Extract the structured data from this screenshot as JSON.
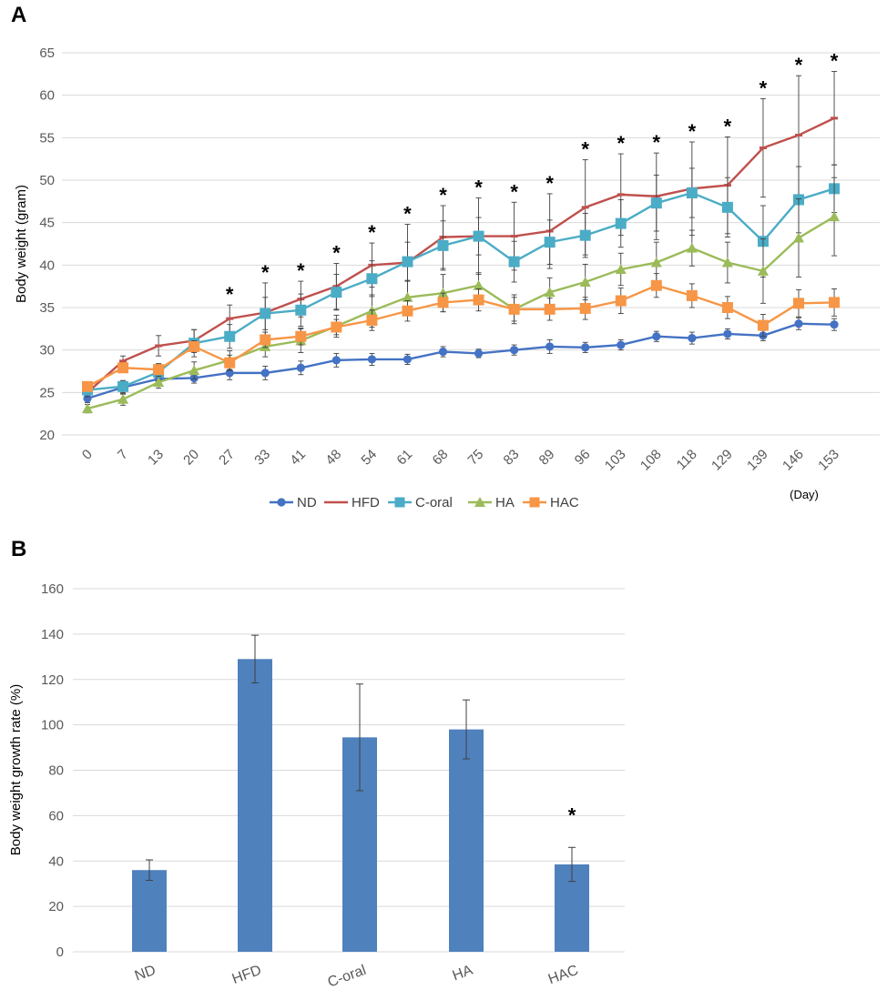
{
  "panels": {
    "a_label": "A",
    "b_label": "B"
  },
  "colors": {
    "ND": "#4472c4",
    "HFD": "#c0504d",
    "C-oral": "#4bacc6",
    "HA": "#9bbb59",
    "HAC": "#f79646",
    "bar": "#4f81bd",
    "grid": "#d9d9d9",
    "axis_text": "#595959",
    "error": "#404040"
  },
  "chart_data": [
    {
      "type": "line",
      "panel": "A",
      "title": "",
      "xlabel": "(Day)",
      "ylabel": "Body weight (gram)",
      "ylim": [
        20,
        65
      ],
      "yticks": [
        20,
        25,
        30,
        35,
        40,
        45,
        50,
        55,
        60,
        65
      ],
      "grid": true,
      "legend": "bottom",
      "categories": [
        "0",
        "7",
        "13",
        "20",
        "27",
        "33",
        "41",
        "48",
        "54",
        "61",
        "68",
        "75",
        "83",
        "89",
        "96",
        "103",
        "108",
        "118",
        "129",
        "139",
        "146",
        "153"
      ],
      "significance": [
        "",
        "",
        "",
        "",
        "*",
        "*",
        "*",
        "*",
        "*",
        "*",
        "*",
        "*",
        "*",
        "*",
        "*",
        "*",
        "*",
        "*",
        "*",
        "*",
        "*",
        "*"
      ],
      "series": [
        {
          "name": "ND",
          "marker": "circle",
          "values": [
            24.3,
            25.6,
            26.6,
            26.7,
            27.3,
            27.3,
            27.9,
            28.8,
            28.9,
            28.9,
            29.8,
            29.6,
            30.0,
            30.4,
            30.3,
            30.6,
            31.6,
            31.4,
            31.9,
            31.7,
            33.1,
            33.0
          ],
          "errors": [
            0.5,
            0.8,
            0.6,
            0.6,
            0.8,
            0.8,
            0.8,
            0.8,
            0.7,
            0.6,
            0.6,
            0.5,
            0.6,
            0.8,
            0.6,
            0.6,
            0.6,
            0.7,
            0.6,
            0.6,
            0.7,
            0.7
          ]
        },
        {
          "name": "HFD",
          "marker": "dash",
          "values": [
            25.0,
            28.7,
            30.5,
            31.1,
            33.7,
            34.4,
            36.0,
            37.5,
            40.0,
            40.3,
            43.3,
            43.4,
            43.4,
            44.0,
            46.8,
            48.3,
            48.1,
            49.0,
            49.4,
            53.8,
            55.3,
            57.3
          ],
          "errors": [
            0.5,
            0.6,
            1.2,
            1.3,
            1.6,
            3.5,
            2.1,
            2.7,
            2.6,
            4.5,
            3.7,
            4.5,
            4.0,
            4.4,
            5.6,
            4.8,
            5.1,
            5.5,
            5.7,
            5.8,
            7.0,
            5.5
          ]
        },
        {
          "name": "C-oral",
          "marker": "square",
          "values": [
            25.3,
            25.7,
            27.4,
            30.8,
            31.6,
            34.3,
            34.7,
            36.8,
            38.4,
            40.4,
            42.3,
            43.4,
            40.4,
            42.7,
            43.5,
            44.9,
            47.3,
            48.5,
            46.8,
            42.8,
            47.7,
            49.0
          ],
          "errors": [
            0.5,
            0.7,
            1.0,
            1.6,
            1.4,
            1.9,
            1.9,
            2.1,
            2.1,
            2.3,
            2.9,
            2.2,
            2.4,
            2.6,
            2.6,
            2.8,
            3.3,
            2.9,
            3.5,
            4.2,
            3.9,
            2.8
          ]
        },
        {
          "name": "HA",
          "marker": "triangle",
          "values": [
            23.1,
            24.2,
            26.2,
            27.6,
            28.8,
            30.4,
            31.1,
            32.8,
            34.6,
            36.2,
            36.7,
            37.6,
            34.8,
            36.8,
            38.0,
            39.5,
            40.3,
            42.0,
            40.3,
            39.3,
            43.2,
            45.7
          ],
          "errors": [
            0.5,
            0.7,
            0.7,
            1.0,
            1.1,
            1.2,
            1.4,
            1.3,
            1.9,
            2.0,
            2.2,
            1.5,
            1.7,
            1.7,
            2.1,
            1.9,
            2.4,
            2.1,
            2.4,
            3.8,
            4.6,
            4.6
          ]
        },
        {
          "name": "HAC",
          "marker": "square",
          "values": [
            25.7,
            27.9,
            27.7,
            30.4,
            28.5,
            31.2,
            31.6,
            32.7,
            33.5,
            34.6,
            35.6,
            35.9,
            34.8,
            34.8,
            34.9,
            35.8,
            37.6,
            36.4,
            35.0,
            32.9,
            35.5,
            35.6
          ],
          "errors": [
            0.5,
            0.5,
            0.6,
            0.7,
            0.9,
            0.9,
            1.0,
            0.9,
            1.2,
            1.2,
            1.1,
            1.3,
            1.4,
            1.3,
            1.3,
            1.5,
            1.4,
            1.4,
            1.3,
            1.3,
            1.6,
            1.6
          ]
        }
      ]
    },
    {
      "type": "bar",
      "panel": "B",
      "title": "",
      "xlabel": "",
      "ylabel": "Body weight growth rate (%)",
      "ylim": [
        0,
        160
      ],
      "yticks": [
        0,
        20,
        40,
        60,
        80,
        100,
        120,
        140,
        160
      ],
      "grid": true,
      "categories": [
        "ND",
        "HFD",
        "C-oral",
        "HA",
        "HAC"
      ],
      "values": [
        36,
        129,
        94.5,
        98,
        38.5
      ],
      "errors": [
        4.5,
        10.5,
        23.5,
        13,
        7.5
      ],
      "significance": [
        "",
        "",
        "",
        "",
        "*"
      ]
    }
  ]
}
